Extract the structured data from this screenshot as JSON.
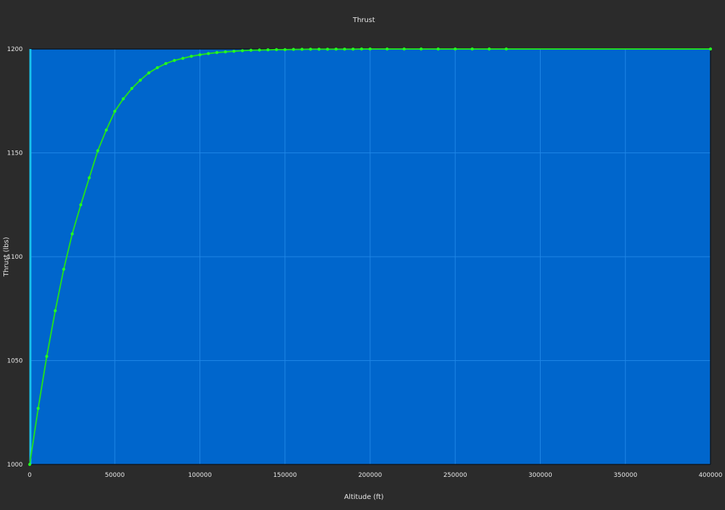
{
  "chart_data": {
    "type": "line",
    "title": "Thrust",
    "xlabel": "Altitude (ft)",
    "ylabel": "Thrust (lbs)",
    "xlim": [
      0,
      400000
    ],
    "ylim": [
      1000,
      1200
    ],
    "xticks": [
      0,
      50000,
      100000,
      150000,
      200000,
      250000,
      300000,
      350000,
      400000
    ],
    "yticks": [
      1000,
      1050,
      1100,
      1150,
      1200
    ],
    "grid": true,
    "colors": {
      "background": "#2b2b2b",
      "plot_area": "#0066cc",
      "grid": "#1f86e6",
      "line": "#22dd22",
      "marker": "#22ff22",
      "left_axis_bar": "#19c3ea",
      "text": "#e8e8e8"
    },
    "series": [
      {
        "x": [
          0,
          5000,
          10000,
          15000,
          20000,
          25000,
          30000,
          35000,
          40000,
          45000,
          50000,
          55000,
          60000,
          65000,
          70000,
          75000,
          80000,
          85000,
          90000,
          95000,
          100000,
          105000,
          110000,
          115000,
          120000,
          125000,
          130000,
          135000,
          140000,
          145000,
          150000,
          155000,
          160000,
          165000,
          170000,
          175000,
          180000,
          185000,
          190000,
          195000,
          200000,
          210000,
          220000,
          230000,
          240000,
          250000,
          260000,
          270000,
          280000,
          400000
        ],
        "y": [
          1000,
          1027,
          1052,
          1074,
          1094,
          1111,
          1125,
          1138,
          1151,
          1161,
          1170,
          1176,
          1181,
          1185,
          1188.5,
          1191,
          1193,
          1194.5,
          1195.5,
          1196.5,
          1197.2,
          1197.8,
          1198.3,
          1198.6,
          1198.9,
          1199.2,
          1199.4,
          1199.5,
          1199.6,
          1199.7,
          1199.7,
          1199.8,
          1199.85,
          1199.9,
          1199.9,
          1199.9,
          1199.95,
          1199.95,
          1199.95,
          1200,
          1200,
          1200,
          1200,
          1200,
          1200,
          1200,
          1200,
          1200,
          1200,
          1200
        ]
      }
    ]
  }
}
